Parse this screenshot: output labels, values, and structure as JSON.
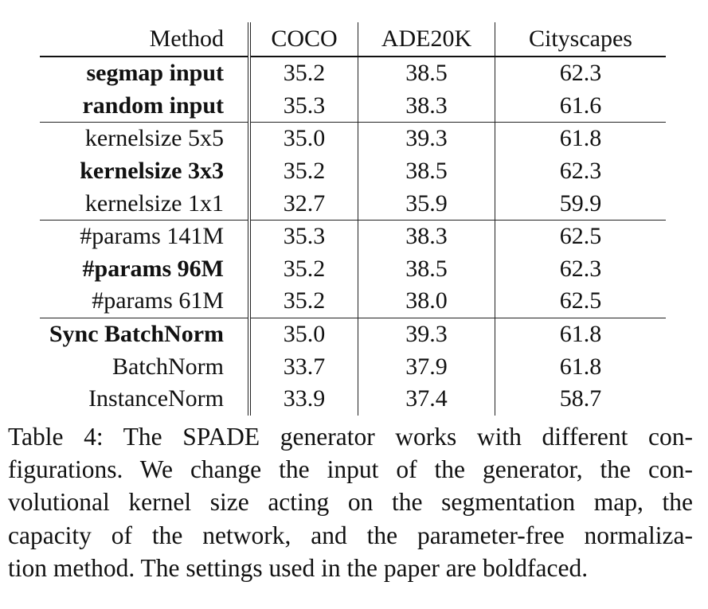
{
  "table": {
    "headers": [
      "Method",
      "COCO",
      "ADE20K",
      "Cityscapes"
    ],
    "rows": [
      {
        "method": "segmap input",
        "bold": true,
        "coco": "35.2",
        "ade20k": "38.5",
        "cityscapes": "62.3",
        "group_end": false
      },
      {
        "method": "random input",
        "bold": true,
        "coco": "35.3",
        "ade20k": "38.3",
        "cityscapes": "61.6",
        "group_end": true
      },
      {
        "method": "kernelsize 5x5",
        "bold": false,
        "coco": "35.0",
        "ade20k": "39.3",
        "cityscapes": "61.8",
        "group_end": false
      },
      {
        "method": "kernelsize 3x3",
        "bold": true,
        "coco": "35.2",
        "ade20k": "38.5",
        "cityscapes": "62.3",
        "group_end": false
      },
      {
        "method": "kernelsize 1x1",
        "bold": false,
        "coco": "32.7",
        "ade20k": "35.9",
        "cityscapes": "59.9",
        "group_end": true
      },
      {
        "method": "#params 141M",
        "bold": false,
        "coco": "35.3",
        "ade20k": "38.3",
        "cityscapes": "62.5",
        "group_end": false
      },
      {
        "method": "#params 96M",
        "bold": true,
        "coco": "35.2",
        "ade20k": "38.5",
        "cityscapes": "62.3",
        "group_end": false
      },
      {
        "method": "#params 61M",
        "bold": false,
        "coco": "35.2",
        "ade20k": "38.0",
        "cityscapes": "62.5",
        "group_end": true
      },
      {
        "method": "Sync BatchNorm",
        "bold": true,
        "coco": "35.0",
        "ade20k": "39.3",
        "cityscapes": "61.8",
        "group_end": false
      },
      {
        "method": "BatchNorm",
        "bold": false,
        "coco": "33.7",
        "ade20k": "37.9",
        "cityscapes": "61.8",
        "group_end": false
      },
      {
        "method": "InstanceNorm",
        "bold": false,
        "coco": "33.9",
        "ade20k": "37.4",
        "cityscapes": "58.7",
        "group_end": false
      }
    ]
  },
  "caption": {
    "lines": [
      "Table 4: The SPADE generator works with different con-",
      "figurations. We change the input of the generator, the con-",
      "volutional kernel size acting on the segmentation map, the",
      "capacity of the network, and the parameter-free normaliza-",
      "tion method. The settings used in the paper are boldfaced."
    ]
  }
}
